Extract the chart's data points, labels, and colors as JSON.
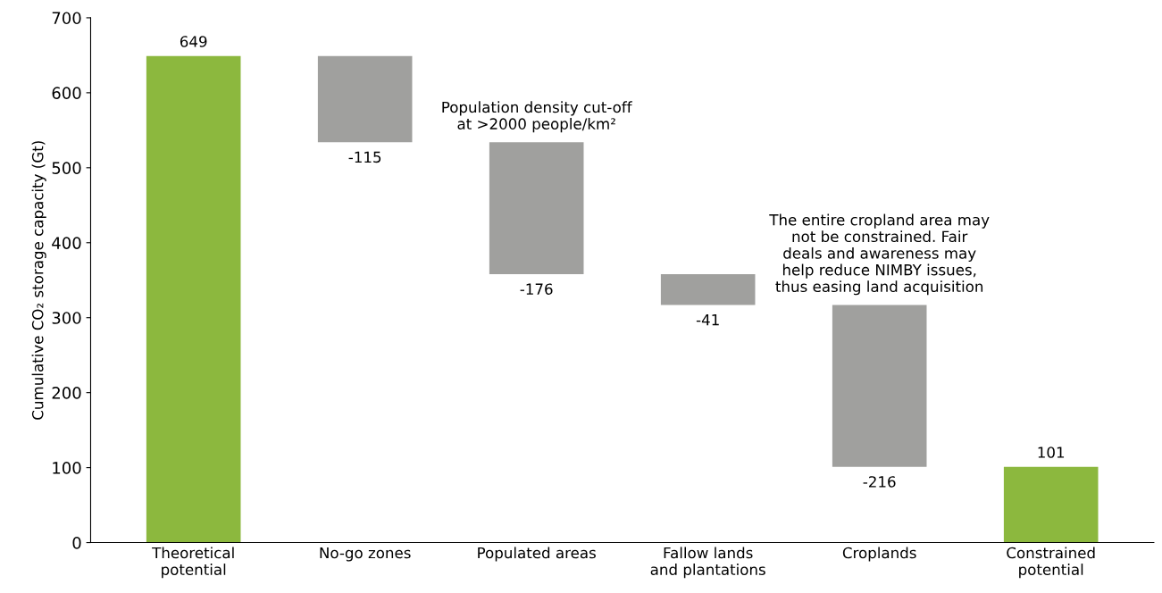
{
  "chart_data": {
    "type": "bar",
    "ylabel": "Cumulative CO₂ storage capacity (Gt)",
    "categories": [
      "Theoretical\npotential",
      "No-go zones",
      "Populated areas",
      "Fallow lands\nand plantations",
      "Croplands",
      "Constrained\npotential"
    ],
    "values": [
      649,
      -115,
      -176,
      -41,
      -216,
      101
    ],
    "base": [
      0,
      649,
      534,
      358,
      317,
      0
    ],
    "colors": [
      "#8cb83e",
      "#a0a09e",
      "#a0a09e",
      "#a0a09e",
      "#a0a09e",
      "#8cb83e"
    ],
    "data_labels": true,
    "ylim": [
      0,
      700
    ],
    "yticks": [
      0,
      100,
      200,
      300,
      400,
      500,
      600,
      700
    ],
    "grid": false,
    "annotations": [
      {
        "text": "Population density cut-off\nat >2000 people/km²",
        "x": "Populated areas",
        "y": 534
      },
      {
        "text": "The entire cropland area may\nnot be constrained. Fair\ndeals and awareness may\nhelp reduce NIMBY issues,\nthus easing land acquisition",
        "x": "Croplands",
        "y": 317
      }
    ]
  }
}
